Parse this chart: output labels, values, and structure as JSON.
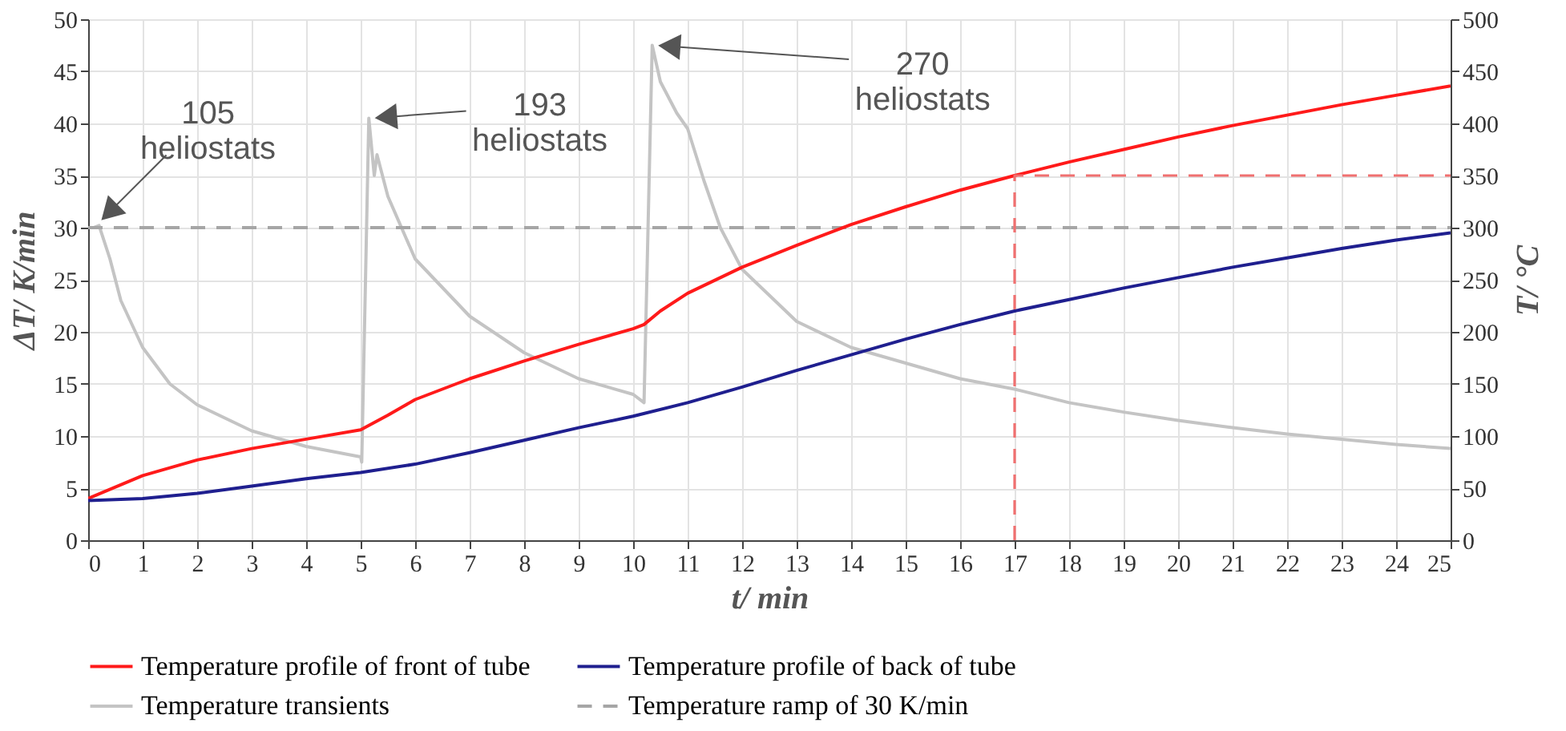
{
  "chart_data": {
    "type": "line",
    "xlabel": "t/ min",
    "ylabel": "ΔT/ K/min",
    "y2label": "T/ °C",
    "xlim": [
      0,
      25
    ],
    "xticks": [
      0,
      1,
      2,
      3,
      4,
      5,
      6,
      7,
      8,
      9,
      10,
      11,
      12,
      13,
      14,
      15,
      16,
      17,
      18,
      19,
      20,
      21,
      22,
      23,
      24,
      25
    ],
    "ylim": [
      0,
      50
    ],
    "yticks": [
      0,
      5,
      10,
      15,
      20,
      25,
      30,
      35,
      40,
      45,
      50
    ],
    "y2lim": [
      0,
      500
    ],
    "y2ticks": [
      0,
      50,
      100,
      150,
      200,
      250,
      300,
      350,
      400,
      450,
      500
    ],
    "grid": true,
    "legend": "bottom",
    "series": [
      {
        "name": "Temperature profile of front of tube",
        "color": "#ff1a1a",
        "axis": "y2",
        "line_style": "solid",
        "x": [
          0,
          1,
          2,
          3,
          4,
          5,
          5.5,
          6,
          7,
          8,
          9,
          10,
          10.2,
          10.5,
          11,
          12,
          13,
          14,
          15,
          16,
          17,
          18,
          19,
          20,
          21,
          22,
          23,
          24,
          25
        ],
        "values": [
          40,
          62,
          77,
          88,
          97,
          106,
          120,
          135,
          155,
          172,
          188,
          203,
          207,
          220,
          237,
          262,
          283,
          303,
          320,
          336,
          350,
          363,
          375,
          387,
          398,
          408,
          418,
          427,
          436
        ]
      },
      {
        "name": "Temperature profile of back of tube",
        "color": "#1f1f8f",
        "axis": "y2",
        "line_style": "solid",
        "x": [
          0,
          1,
          2,
          3,
          4,
          5,
          6,
          7,
          8,
          9,
          10,
          11,
          12,
          13,
          14,
          15,
          16,
          17,
          18,
          19,
          20,
          21,
          22,
          23,
          24,
          25
        ],
        "values": [
          38,
          40,
          45,
          52,
          59,
          65,
          73,
          84,
          96,
          108,
          119,
          132,
          147,
          163,
          178,
          193,
          207,
          220,
          231,
          242,
          252,
          262,
          271,
          280,
          288,
          295
        ]
      },
      {
        "name": "Temperature transients",
        "color": "#c4c4c4",
        "axis": "y",
        "line_style": "solid",
        "x": [
          0.1,
          0.2,
          0.4,
          0.6,
          1,
          1.5,
          2,
          3,
          4,
          5,
          5.02,
          5.15,
          5.25,
          5.3,
          5.5,
          6,
          7,
          8,
          9,
          10,
          10.2,
          10.35,
          10.5,
          10.8,
          11,
          11.3,
          11.6,
          12,
          13,
          14,
          15,
          16,
          17,
          18,
          19,
          20,
          21,
          22,
          23,
          24,
          25
        ],
        "values": [
          30,
          30.2,
          27,
          23,
          18.5,
          15,
          13,
          10.5,
          9,
          8,
          7.5,
          40.5,
          35,
          37,
          33,
          27,
          21.5,
          18,
          15.5,
          14,
          13.2,
          47.5,
          44,
          41,
          39.5,
          34.5,
          30,
          26,
          21,
          18.5,
          17,
          15.5,
          14.5,
          13.2,
          12.3,
          11.5,
          10.8,
          10.2,
          9.7,
          9.2,
          8.8
        ]
      },
      {
        "name": "Temperature ramp of  30 K/min",
        "color": "#a6a6a6",
        "axis": "y",
        "line_style": "dashed",
        "x": [
          0,
          25
        ],
        "values": [
          30,
          30
        ]
      },
      {
        "color": "#f07070",
        "axis": "y2",
        "line_style": "dashed",
        "x": [
          17,
          17,
          25
        ],
        "values": [
          0,
          350,
          350
        ]
      }
    ],
    "annotations": [
      {
        "text": "105\nheliostats",
        "x": 0.2,
        "y": 30.5
      },
      {
        "text": "193\nheliostats",
        "x": 5.2,
        "y": 40.5
      },
      {
        "text": "270\nheliostats",
        "x": 10.4,
        "y": 47.5
      }
    ]
  }
}
